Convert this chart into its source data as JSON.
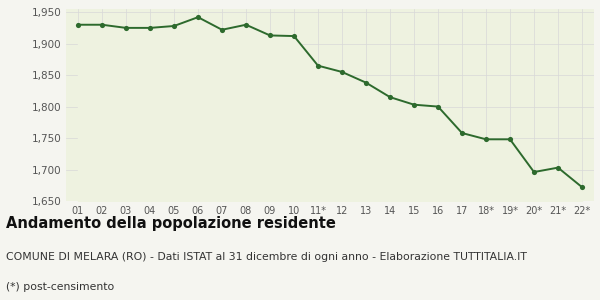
{
  "x_labels": [
    "01",
    "02",
    "03",
    "04",
    "05",
    "06",
    "07",
    "08",
    "09",
    "10",
    "11*",
    "12",
    "13",
    "14",
    "15",
    "16",
    "17",
    "18*",
    "19*",
    "20*",
    "21*",
    "22*"
  ],
  "y_values": [
    1930,
    1930,
    1925,
    1925,
    1928,
    1942,
    1922,
    1930,
    1913,
    1912,
    1865,
    1855,
    1838,
    1815,
    1803,
    1800,
    1758,
    1748,
    1748,
    1696,
    1703,
    1672
  ],
  "line_color": "#2d6a2d",
  "fill_color": "#eef2e0",
  "marker_color": "#2d6a2d",
  "bg_color": "#f5f5f0",
  "grid_color": "#d8d8d8",
  "ylim": [
    1650,
    1955
  ],
  "yticks": [
    1650,
    1700,
    1750,
    1800,
    1850,
    1900,
    1950
  ],
  "title": "Andamento della popolazione residente",
  "subtitle": "COMUNE DI MELARA (RO) - Dati ISTAT al 31 dicembre di ogni anno - Elaborazione TUTTITALIA.IT",
  "footnote": "(*) post-censimento",
  "title_fontsize": 10.5,
  "subtitle_fontsize": 7.8,
  "footnote_fontsize": 7.8
}
